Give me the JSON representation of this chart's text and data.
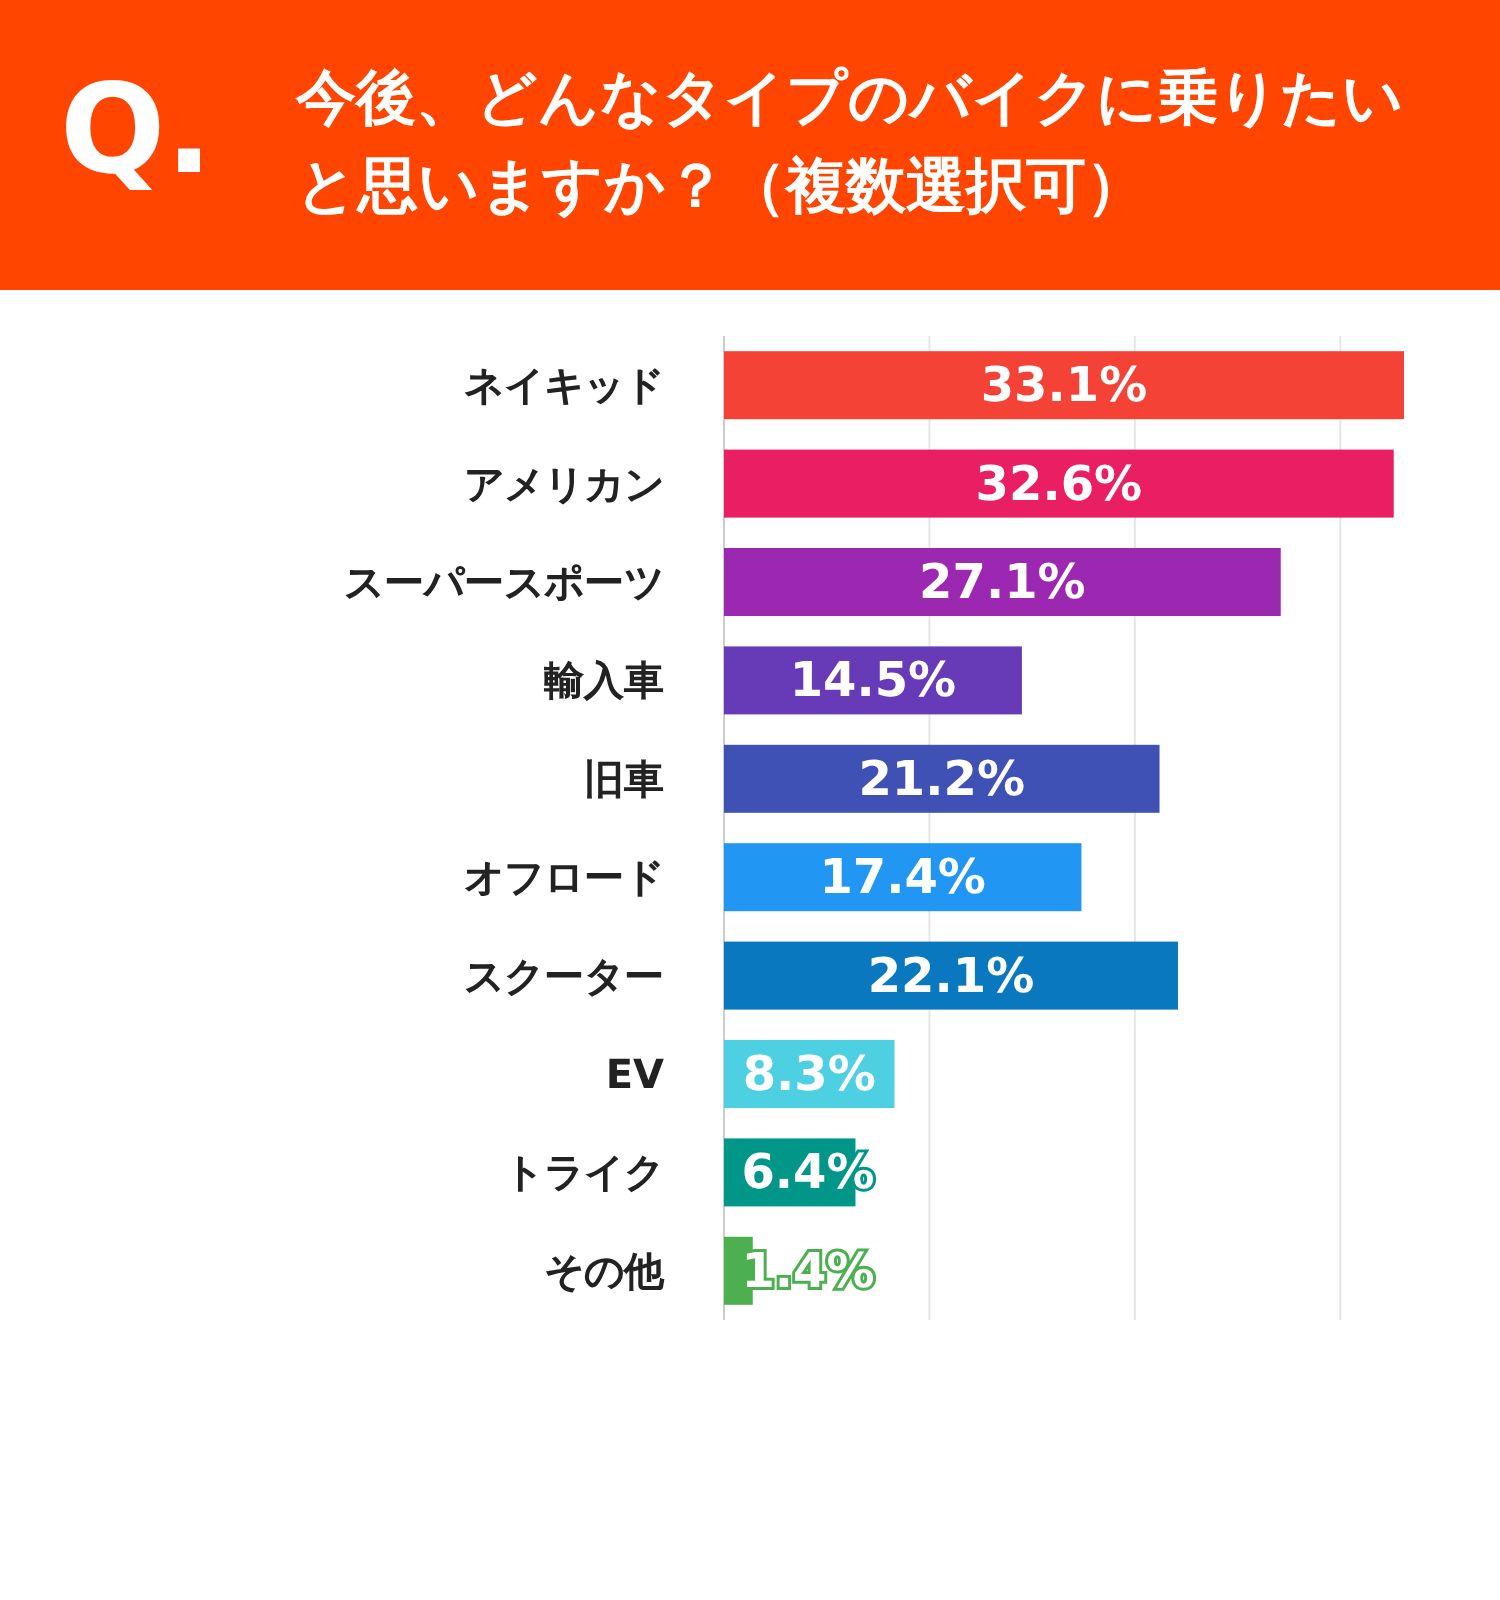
{
  "chart_data": {
    "type": "bar",
    "orientation": "horizontal",
    "title": "今後、どんなタイプのバイクに乗りたいと思いますか？（複数選択可）",
    "annotations": [
      "Q."
    ],
    "categories": [
      "ネイキッド",
      "アメリカン",
      "スーパースポーツ",
      "輸入車",
      "旧車",
      "オフロード",
      "スクーター",
      "EV",
      "トライク",
      "その他"
    ],
    "values": [
      33.1,
      32.6,
      27.1,
      14.5,
      21.2,
      17.4,
      22.1,
      8.3,
      6.4,
      1.4
    ],
    "colors": [
      "#f44336",
      "#e91e63",
      "#9c27b0",
      "#673ab7",
      "#3f51b5",
      "#2196f3",
      "#0a78be",
      "#4dd0e1",
      "#009688",
      "#4caf50"
    ],
    "value_labels": [
      "33.1%",
      "32.6%",
      "27.1%",
      "14.5%",
      "21.2%",
      "17.4%",
      "22.1%",
      "8.3%",
      "6.4%",
      "1.4%"
    ],
    "xticks": [
      {
        "value": 10,
        "label": null
      },
      {
        "value": 20,
        "label": null
      },
      {
        "value": 30,
        "label": null
      }
    ],
    "grid": "x",
    "tick_labels": "y"
  }
}
